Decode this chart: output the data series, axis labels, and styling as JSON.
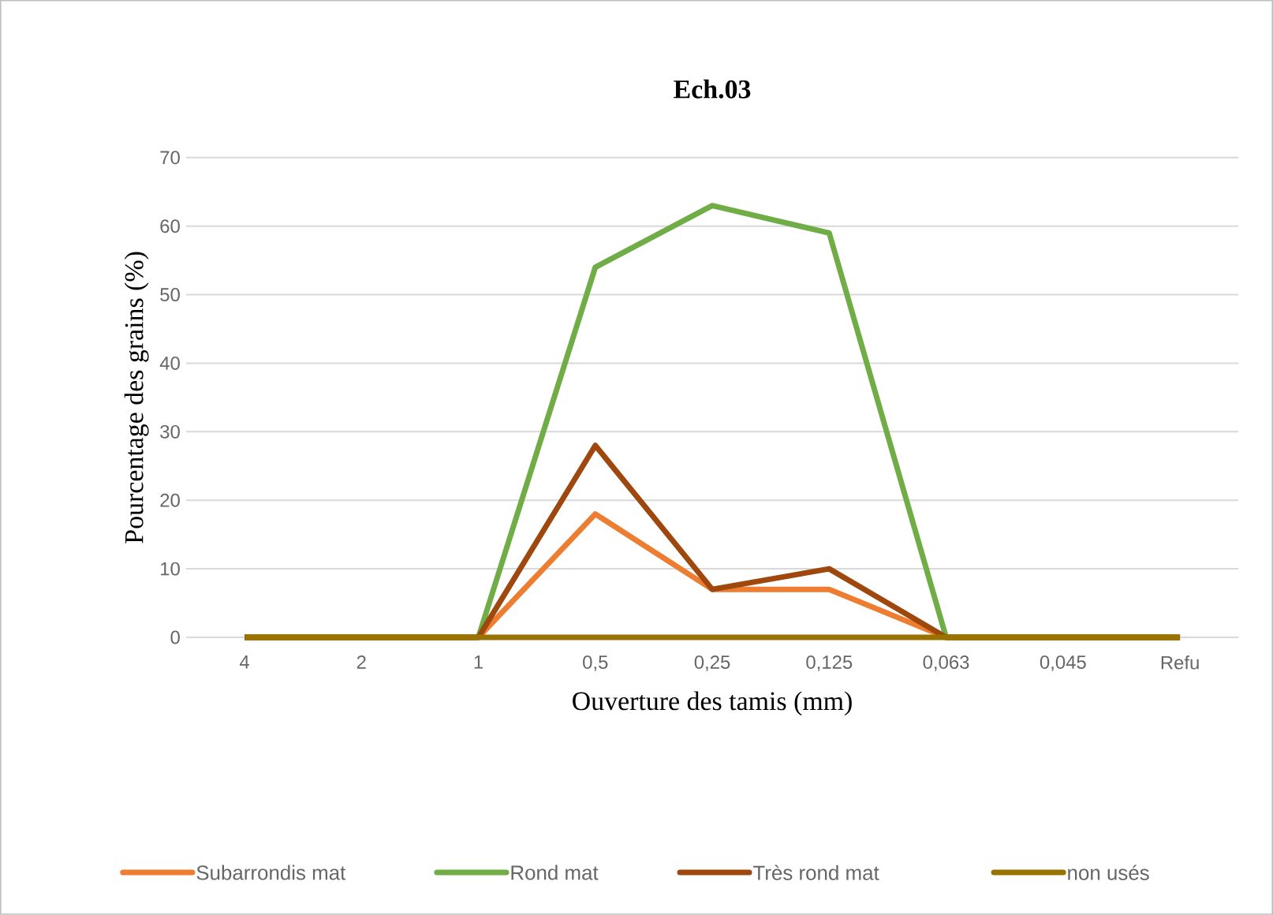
{
  "chart_data": {
    "type": "line",
    "title": "Ech.03",
    "xlabel": "Ouverture des tamis (mm)",
    "ylabel": "Pourcentage des grains (%)",
    "categories": [
      "4",
      "2",
      "1",
      "0,5",
      "0,25",
      "0,125",
      "0,063",
      "0,045",
      "Refu"
    ],
    "series": [
      {
        "name": "Subarrondis mat",
        "color": "#ed7d31",
        "values": [
          0,
          0,
          0,
          18,
          7,
          7,
          0,
          0,
          0
        ]
      },
      {
        "name": "Rond mat",
        "color": "#70ad47",
        "values": [
          0,
          0,
          0,
          54,
          63,
          59,
          0,
          0,
          0
        ]
      },
      {
        "name": "Très rond mat",
        "color": "#9e480e",
        "values": [
          0,
          0,
          0,
          28,
          7,
          10,
          0,
          0,
          0
        ]
      },
      {
        "name": "non usés",
        "color": "#997300",
        "values": [
          0,
          0,
          0,
          0,
          0,
          0,
          0,
          0,
          0
        ]
      }
    ],
    "ylim": [
      0,
      70
    ],
    "yticks": [
      0,
      10,
      20,
      30,
      40,
      50,
      60,
      70
    ],
    "grid": "y",
    "legend": "bottom",
    "marker": "none",
    "line_style": "solid"
  }
}
